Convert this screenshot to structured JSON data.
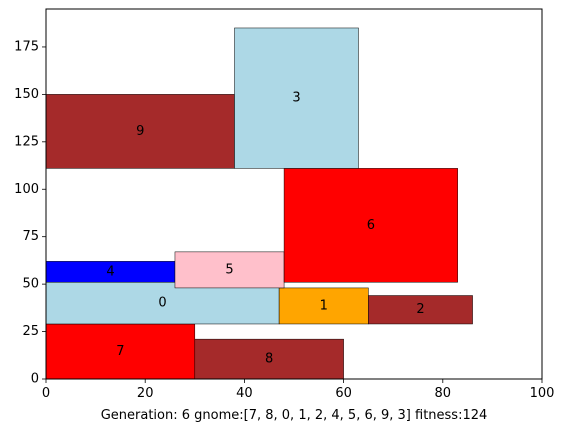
{
  "chart_data": {
    "type": "rectangles",
    "xlim": [
      0,
      100
    ],
    "ylim": [
      0,
      195
    ],
    "xticks": [
      0,
      20,
      40,
      60,
      80,
      100
    ],
    "yticks": [
      0,
      25,
      50,
      75,
      100,
      125,
      150,
      175
    ],
    "xlabel": "Generation: 6 gnome:[7, 8, 0, 1, 2, 4, 5, 6, 9, 3] fitness:124",
    "ylabel": "",
    "title": "",
    "grid": false,
    "rects": [
      {
        "label": "7",
        "x": 0,
        "y": 0,
        "w": 30,
        "h": 29,
        "color": "#ff0000"
      },
      {
        "label": "8",
        "x": 30,
        "y": 0,
        "w": 30,
        "h": 21,
        "color": "#a52a2a"
      },
      {
        "label": "0",
        "x": 0,
        "y": 29,
        "w": 47,
        "h": 22,
        "color": "#add8e6"
      },
      {
        "label": "1",
        "x": 47,
        "y": 29,
        "w": 18,
        "h": 19,
        "color": "#ffa500"
      },
      {
        "label": "2",
        "x": 65,
        "y": 29,
        "w": 21,
        "h": 15,
        "color": "#a52a2a"
      },
      {
        "label": "4",
        "x": 0,
        "y": 51,
        "w": 26,
        "h": 11,
        "color": "#0000ff"
      },
      {
        "label": "5",
        "x": 26,
        "y": 48,
        "w": 22,
        "h": 19,
        "color": "#ffc0cb"
      },
      {
        "label": "6",
        "x": 48,
        "y": 51,
        "w": 35,
        "h": 60,
        "color": "#ff0000"
      },
      {
        "label": "9",
        "x": 0,
        "y": 111,
        "w": 38,
        "h": 39,
        "color": "#a52a2a"
      },
      {
        "label": "3",
        "x": 38,
        "y": 111,
        "w": 25,
        "h": 74,
        "color": "#add8e6"
      }
    ]
  }
}
